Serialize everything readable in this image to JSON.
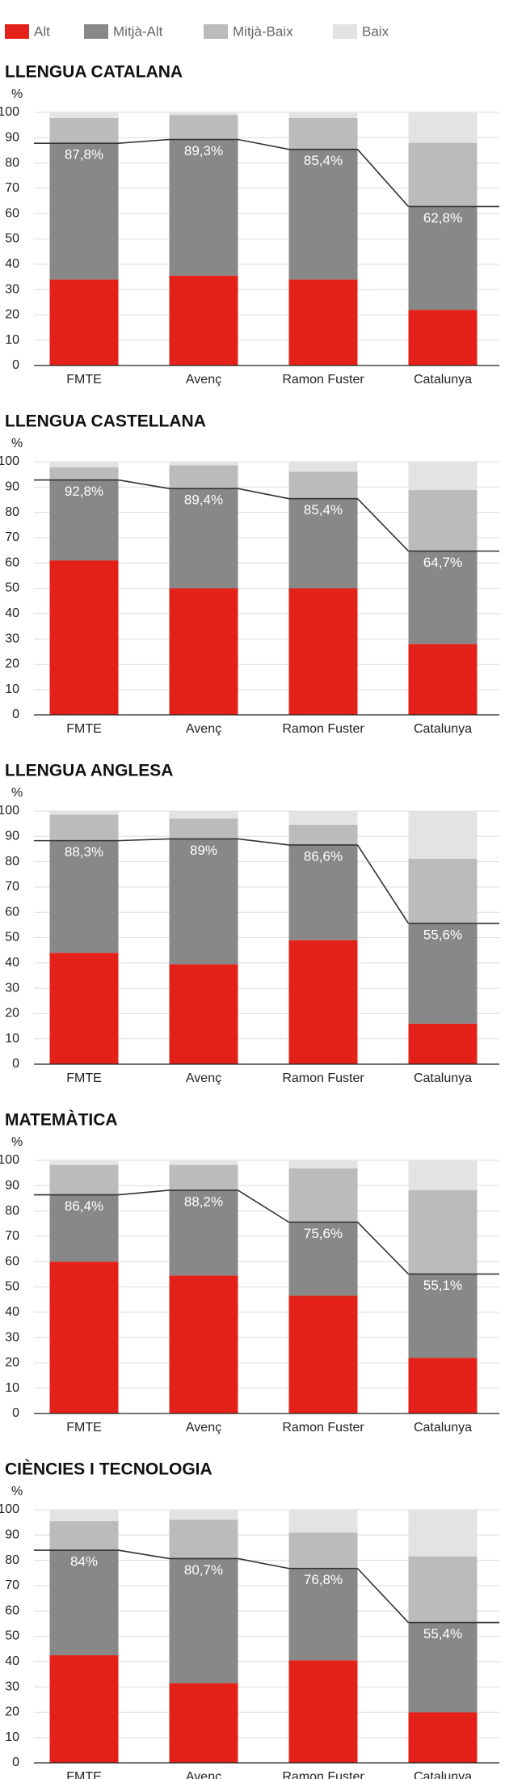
{
  "chart_data": [
    {
      "type": "bar",
      "stacked": true,
      "title": "LLENGUA CATALANA",
      "y_label": "%",
      "categories": [
        "FMTE",
        "Avenç",
        "Ramon Fuster",
        "Catalunya"
      ],
      "series": [
        {
          "name": "Alt",
          "color": "#e32119",
          "values": [
            34,
            35.5,
            34,
            22
          ]
        },
        {
          "name": "Mitjà-Alt",
          "color": "#888888",
          "values": [
            53.8,
            53.8,
            51.4,
            40.8
          ]
        },
        {
          "name": "Mitjà-Baix",
          "color": "#bbbbbb",
          "values": [
            10,
            9.7,
            12.4,
            25.2
          ]
        },
        {
          "name": "Baix",
          "color": "#e3e3e3",
          "values": [
            2.2,
            1,
            2.2,
            12
          ]
        }
      ],
      "line": {
        "color": "#333333",
        "values": [
          87.8,
          89.3,
          85.4,
          62.8
        ],
        "value_labels": [
          "87,8%",
          "89,3%",
          "85,4%",
          "62,8%"
        ]
      },
      "ylim": [
        0,
        100
      ],
      "yticks": [
        0,
        10,
        20,
        30,
        40,
        50,
        60,
        70,
        80,
        90,
        100
      ],
      "grid": true
    },
    {
      "type": "bar",
      "stacked": true,
      "title": "LLENGUA CASTELLANA",
      "y_label": "%",
      "categories": [
        "FMTE",
        "Avenç",
        "Ramon Fuster",
        "Catalunya"
      ],
      "series": [
        {
          "name": "Alt",
          "color": "#e32119",
          "values": [
            61,
            50,
            50,
            28
          ]
        },
        {
          "name": "Mitjà-Alt",
          "color": "#888888",
          "values": [
            31.8,
            39.4,
            35.4,
            36.7
          ]
        },
        {
          "name": "Mitjà-Baix",
          "color": "#bbbbbb",
          "values": [
            5,
            9.2,
            10.6,
            24.1
          ]
        },
        {
          "name": "Baix",
          "color": "#e3e3e3",
          "values": [
            2.2,
            1.4,
            4,
            11.2
          ]
        }
      ],
      "line": {
        "color": "#333333",
        "values": [
          92.8,
          89.4,
          85.4,
          64.7
        ],
        "value_labels": [
          "92,8%",
          "89,4%",
          "85,4%",
          "64,7%"
        ]
      },
      "ylim": [
        0,
        100
      ],
      "yticks": [
        0,
        10,
        20,
        30,
        40,
        50,
        60,
        70,
        80,
        90,
        100
      ],
      "grid": true
    },
    {
      "type": "bar",
      "stacked": true,
      "title": "LLENGUA ANGLESA",
      "y_label": "%",
      "categories": [
        "FMTE",
        "Avenç",
        "Ramon Fuster",
        "Catalunya"
      ],
      "series": [
        {
          "name": "Alt",
          "color": "#e32119",
          "values": [
            44,
            39.5,
            49,
            16
          ]
        },
        {
          "name": "Mitjà-Alt",
          "color": "#888888",
          "values": [
            44.3,
            49.5,
            37.6,
            39.6
          ]
        },
        {
          "name": "Mitjà-Baix",
          "color": "#bbbbbb",
          "values": [
            10.3,
            8,
            8,
            25.6
          ]
        },
        {
          "name": "Baix",
          "color": "#e3e3e3",
          "values": [
            1.4,
            3,
            5.4,
            18.8
          ]
        }
      ],
      "line": {
        "color": "#333333",
        "values": [
          88.3,
          89,
          86.6,
          55.6
        ],
        "value_labels": [
          "88,3%",
          "89%",
          "86,6%",
          "55,6%"
        ]
      },
      "ylim": [
        0,
        100
      ],
      "yticks": [
        0,
        10,
        20,
        30,
        40,
        50,
        60,
        70,
        80,
        90,
        100
      ],
      "grid": true
    },
    {
      "type": "bar",
      "stacked": true,
      "title": "MATEMÀTICA",
      "y_label": "%",
      "categories": [
        "FMTE",
        "Avenç",
        "Ramon Fuster",
        "Catalunya"
      ],
      "series": [
        {
          "name": "Alt",
          "color": "#e32119",
          "values": [
            60,
            54.5,
            46.5,
            22
          ]
        },
        {
          "name": "Mitjà-Alt",
          "color": "#888888",
          "values": [
            26.4,
            33.7,
            29.1,
            33.1
          ]
        },
        {
          "name": "Mitjà-Baix",
          "color": "#bbbbbb",
          "values": [
            11.8,
            10,
            21.3,
            33.2
          ]
        },
        {
          "name": "Baix",
          "color": "#e3e3e3",
          "values": [
            1.8,
            1.8,
            3.1,
            11.7
          ]
        }
      ],
      "line": {
        "color": "#333333",
        "values": [
          86.4,
          88.2,
          75.6,
          55.1
        ],
        "value_labels": [
          "86,4%",
          "88,2%",
          "75,6%",
          "55,1%"
        ]
      },
      "ylim": [
        0,
        100
      ],
      "yticks": [
        0,
        10,
        20,
        30,
        40,
        50,
        60,
        70,
        80,
        90,
        100
      ],
      "grid": true
    },
    {
      "type": "bar",
      "stacked": true,
      "title": "CIÈNCIES I TECNOLOGIA",
      "y_label": "%",
      "categories": [
        "FMTE",
        "Avenç",
        "Ramon Fuster",
        "Catalunya"
      ],
      "series": [
        {
          "name": "Alt",
          "color": "#e32119",
          "values": [
            42.5,
            31.5,
            40.5,
            20
          ]
        },
        {
          "name": "Mitjà-Alt",
          "color": "#888888",
          "values": [
            41.5,
            49.2,
            36.3,
            35.4
          ]
        },
        {
          "name": "Mitjà-Baix",
          "color": "#bbbbbb",
          "values": [
            11.5,
            15.3,
            14.2,
            26.2
          ]
        },
        {
          "name": "Baix",
          "color": "#e3e3e3",
          "values": [
            4.5,
            4,
            9,
            18.4
          ]
        }
      ],
      "line": {
        "color": "#333333",
        "values": [
          84,
          80.7,
          76.8,
          55.4
        ],
        "value_labels": [
          "84%",
          "80,7%",
          "76,8%",
          "55,4%"
        ]
      },
      "ylim": [
        0,
        100
      ],
      "yticks": [
        0,
        10,
        20,
        30,
        40,
        50,
        60,
        70,
        80,
        90,
        100
      ],
      "grid": true
    }
  ]
}
